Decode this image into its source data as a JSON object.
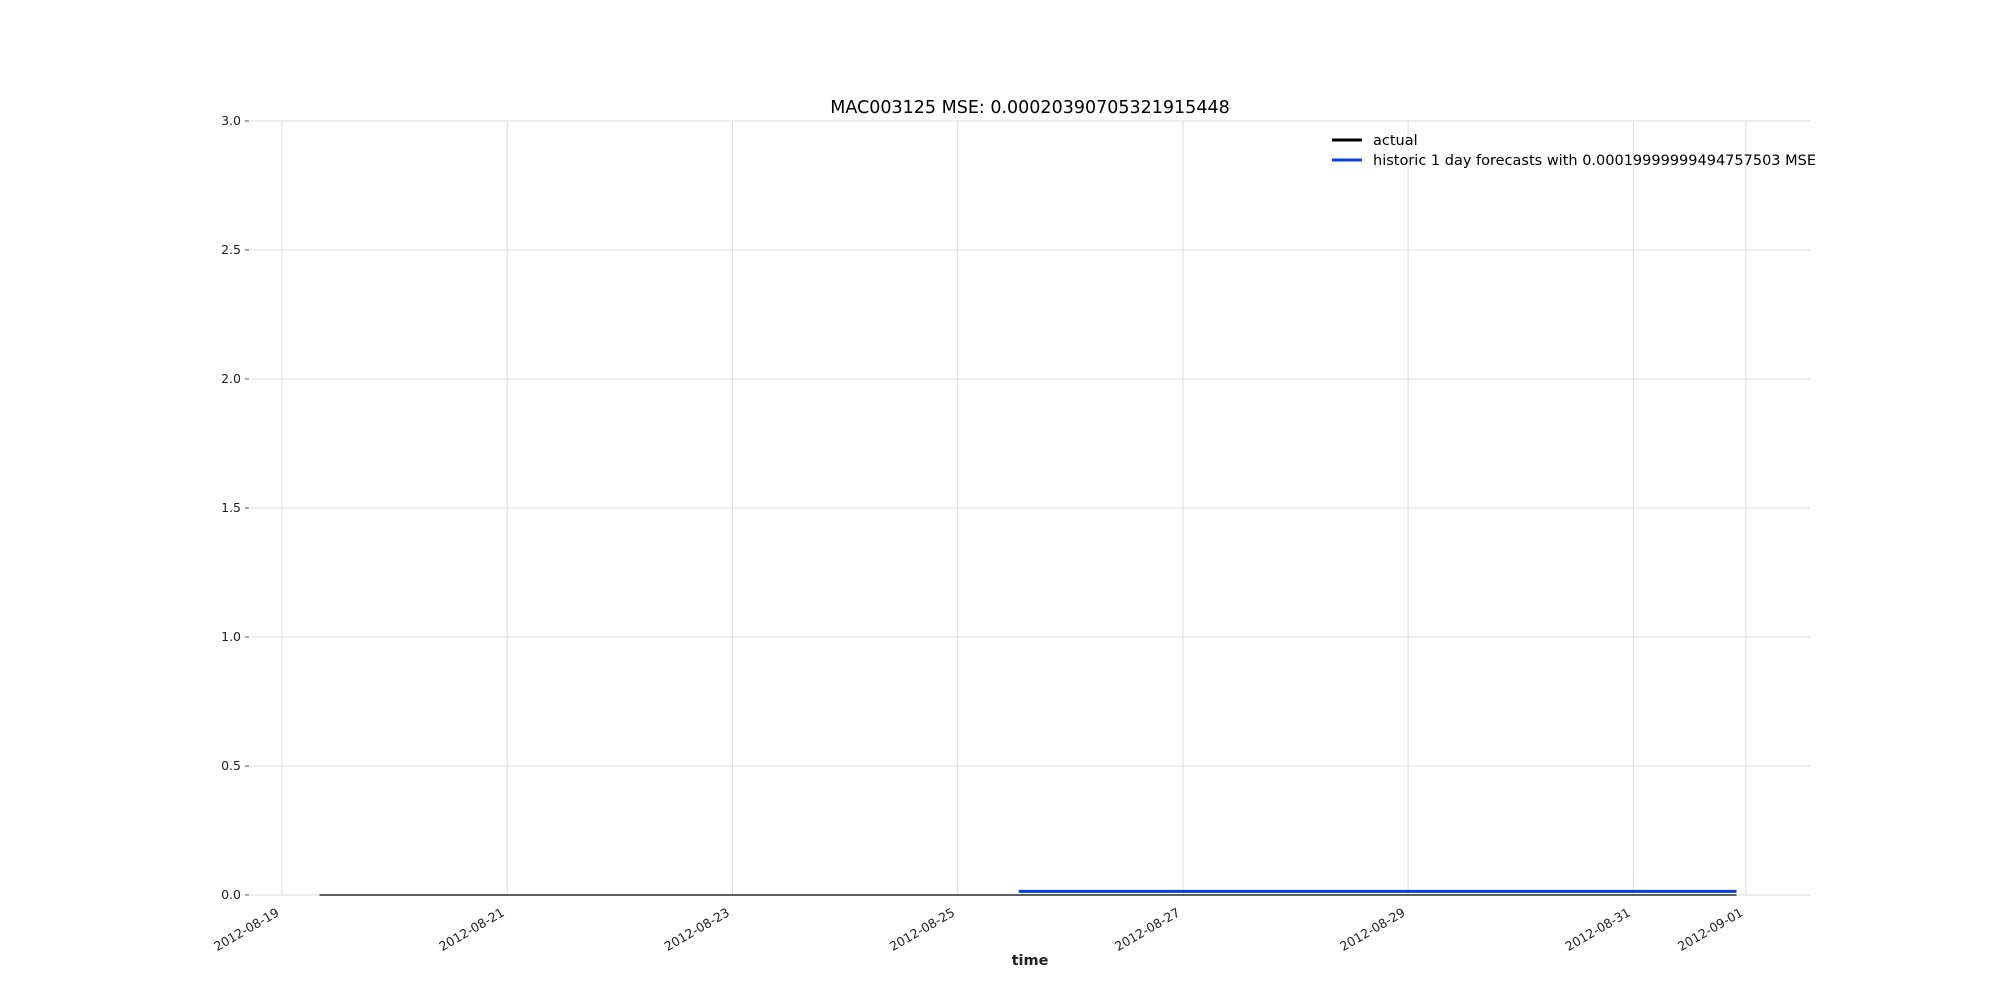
{
  "chart_data": {
    "type": "line",
    "title": "MAC003125 MSE: 0.00020390705321915448",
    "xlabel": "time",
    "ylabel": "",
    "x_type": "date",
    "xlim": [
      "2012-08-19",
      "2012-09-01T03:00:00"
    ],
    "ylim": [
      0,
      3.0
    ],
    "grid": true,
    "legend_position": "top-right",
    "x_ticks": [
      "2012-08-19",
      "2012-08-21",
      "2012-08-23",
      "2012-08-25",
      "2012-08-27",
      "2012-08-29",
      "2012-08-31",
      "2012-09-01"
    ],
    "y_ticks": [
      "0.0",
      "0.5",
      "1.0",
      "1.5",
      "2.0",
      "2.5",
      "3.0"
    ],
    "series": [
      {
        "name": "actual",
        "color": "#000000",
        "x": [
          "2012-08-19T08:00:00",
          "2012-08-31T22:00:00"
        ],
        "y": [
          0.0,
          0.0
        ]
      },
      {
        "name": "historic 1 day forecasts with 0.00019999999494757503 MSE",
        "color": "#0b3fe6",
        "x": [
          "2012-08-25T13:00:00",
          "2012-08-31T22:00:00"
        ],
        "y": [
          0.014,
          0.014
        ]
      }
    ]
  }
}
